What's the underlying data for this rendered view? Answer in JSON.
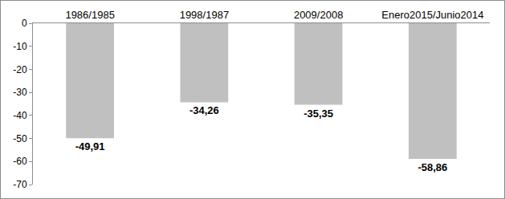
{
  "chart_data": {
    "type": "bar",
    "categories": [
      "1986/1985",
      "1998/1987",
      "2009/2008",
      "Enero2015/Junio2014"
    ],
    "values": [
      -49.91,
      -34.26,
      -35.35,
      -58.86
    ],
    "value_labels": [
      "-49,91",
      "-34,26",
      "-35,35",
      "-58,86"
    ],
    "color": "#c0c0c0",
    "ylim": [
      -70,
      0
    ],
    "yticks": [
      0,
      -10,
      -20,
      -30,
      -40,
      -50,
      -60,
      -70
    ],
    "grid": false,
    "data_labels": true
  }
}
